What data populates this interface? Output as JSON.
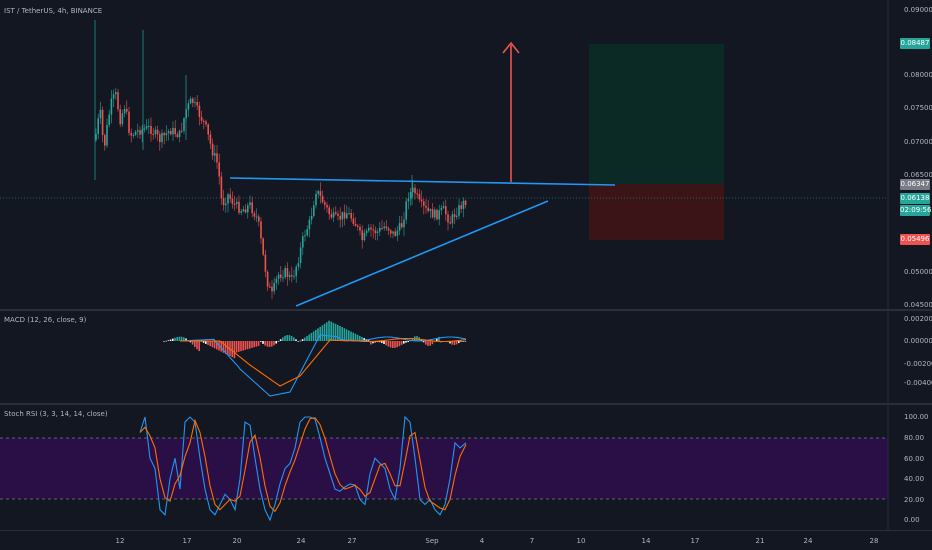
{
  "main": {
    "title": "IST / TetherUS, 4h, BINANCE",
    "y_ticks": [
      "0.09000",
      "0.08000",
      "0.07500",
      "0.07000",
      "0.06500",
      "0.05000",
      "0.04500"
    ],
    "tags": {
      "target": "0.08487",
      "entry": "0.06347",
      "last": "0.06138",
      "countdown": "02:09:56",
      "stop": "0.05496"
    }
  },
  "macd": {
    "title": "MACD (12, 26, close, 9)",
    "y_ticks": [
      "0.00200",
      "0.00000",
      "-0.00200",
      "-0.00400"
    ]
  },
  "stoch": {
    "title": "Stoch RSI (3, 3, 14, 14, close)",
    "y_ticks": [
      "100.00",
      "80.00",
      "60.00",
      "40.00",
      "20.00",
      "0.00"
    ]
  },
  "x_axis": {
    "labels": [
      "12",
      "17",
      "20",
      "24",
      "27",
      "Sep",
      "4",
      "7",
      "10",
      "14",
      "17",
      "21",
      "24",
      "28"
    ]
  },
  "colors": {
    "background": "#131722",
    "up": "#26a69a",
    "down": "#ef5350",
    "trendline": "#2196f3",
    "target_zone": "#0b2a25",
    "stop_zone": "#3a1416",
    "stoch_band": "#2a0f47",
    "macd_line": "#2196f3",
    "signal_line": "#ff6d00"
  }
}
